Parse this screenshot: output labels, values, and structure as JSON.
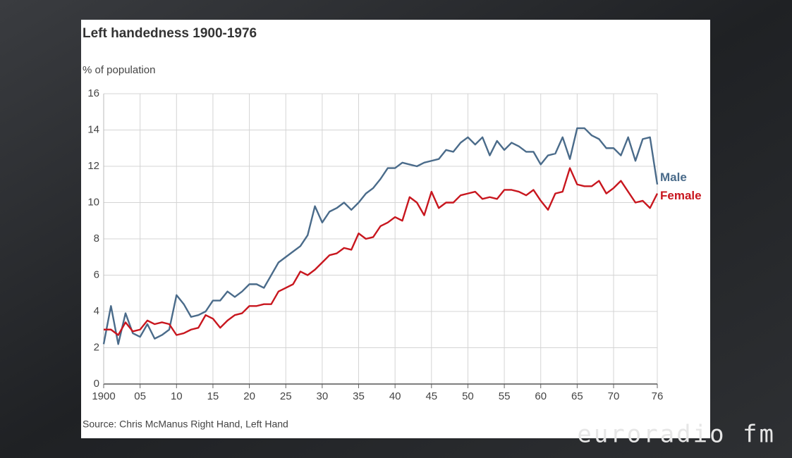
{
  "chart_data": {
    "type": "line",
    "title": "Left handedness 1900-1976",
    "y_label": "% of population",
    "source": "Source: Chris McManus Right Hand, Left Hand",
    "watermark": "euroradio fm",
    "x": [
      1900,
      1901,
      1902,
      1903,
      1904,
      1905,
      1906,
      1907,
      1908,
      1909,
      1910,
      1911,
      1912,
      1913,
      1914,
      1915,
      1916,
      1917,
      1918,
      1919,
      1920,
      1921,
      1922,
      1923,
      1924,
      1925,
      1926,
      1927,
      1928,
      1929,
      1930,
      1931,
      1932,
      1933,
      1934,
      1935,
      1936,
      1937,
      1938,
      1939,
      1940,
      1941,
      1942,
      1943,
      1944,
      1945,
      1946,
      1947,
      1948,
      1949,
      1950,
      1951,
      1952,
      1953,
      1954,
      1955,
      1956,
      1957,
      1958,
      1959,
      1960,
      1961,
      1962,
      1963,
      1964,
      1965,
      1966,
      1967,
      1968,
      1969,
      1970,
      1971,
      1972,
      1973,
      1974,
      1975,
      1976
    ],
    "series": [
      {
        "name": "Male",
        "color": "#4a6b8a",
        "values": [
          2.2,
          4.3,
          2.2,
          3.9,
          2.8,
          2.6,
          3.3,
          2.5,
          2.7,
          3.0,
          4.9,
          4.4,
          3.7,
          3.8,
          4.0,
          4.6,
          4.6,
          5.1,
          4.8,
          5.1,
          5.5,
          5.5,
          5.3,
          6.0,
          6.7,
          7.0,
          7.3,
          7.6,
          8.2,
          9.8,
          8.9,
          9.5,
          9.7,
          10.0,
          9.6,
          10.0,
          10.5,
          10.8,
          11.3,
          11.9,
          11.9,
          12.2,
          12.1,
          12.0,
          12.2,
          12.3,
          12.4,
          12.9,
          12.8,
          13.3,
          13.6,
          13.2,
          13.6,
          12.6,
          13.4,
          12.9,
          13.3,
          13.1,
          12.8,
          12.8,
          12.1,
          12.6,
          12.7,
          13.6,
          12.4,
          14.1,
          14.1,
          13.7,
          13.5,
          13.0,
          13.0,
          12.6,
          13.6,
          12.3,
          13.5,
          13.6,
          11.0
        ]
      },
      {
        "name": "Female",
        "color": "#c8161e",
        "values": [
          3.0,
          3.0,
          2.7,
          3.4,
          2.9,
          3.0,
          3.5,
          3.3,
          3.4,
          3.3,
          2.7,
          2.8,
          3.0,
          3.1,
          3.8,
          3.6,
          3.1,
          3.5,
          3.8,
          3.9,
          4.3,
          4.3,
          4.4,
          4.4,
          5.1,
          5.3,
          5.5,
          6.2,
          6.0,
          6.3,
          6.7,
          7.1,
          7.2,
          7.5,
          7.4,
          8.3,
          8.0,
          8.1,
          8.7,
          8.9,
          9.2,
          9.0,
          10.3,
          10.0,
          9.3,
          10.6,
          9.7,
          10.0,
          10.0,
          10.4,
          10.5,
          10.6,
          10.2,
          10.3,
          10.2,
          10.7,
          10.7,
          10.6,
          10.4,
          10.7,
          10.1,
          9.6,
          10.5,
          10.6,
          11.9,
          11.0,
          10.9,
          10.9,
          11.2,
          10.5,
          10.8,
          11.2,
          10.6,
          10.0,
          10.1,
          9.7,
          10.5
        ]
      }
    ],
    "xlim": [
      1900,
      1976
    ],
    "xticks": [
      1900,
      {
        "value": 1905,
        "label": "05"
      },
      {
        "value": 1910,
        "label": "10"
      },
      {
        "value": 1915,
        "label": "15"
      },
      {
        "value": 1920,
        "label": "20"
      },
      {
        "value": 1925,
        "label": "25"
      },
      {
        "value": 1930,
        "label": "30"
      },
      {
        "value": 1935,
        "label": "35"
      },
      {
        "value": 1940,
        "label": "40"
      },
      {
        "value": 1945,
        "label": "45"
      },
      {
        "value": 1950,
        "label": "50"
      },
      {
        "value": 1955,
        "label": "55"
      },
      {
        "value": 1960,
        "label": "60"
      },
      {
        "value": 1965,
        "label": "65"
      },
      {
        "value": 1970,
        "label": "70"
      },
      {
        "value": 1976,
        "label": "76"
      }
    ],
    "ylim": [
      0,
      16
    ],
    "yticks": [
      0,
      2,
      4,
      6,
      8,
      10,
      12,
      14,
      16
    ],
    "grid": true
  }
}
